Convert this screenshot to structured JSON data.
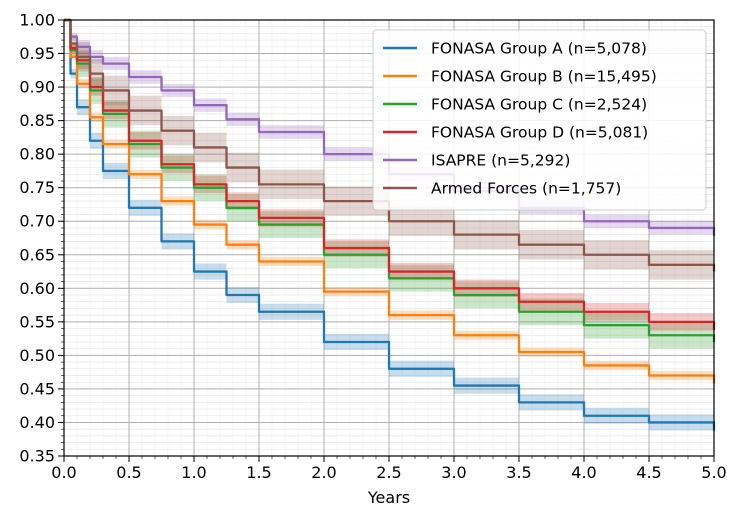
{
  "chart_data": {
    "type": "line",
    "title": "",
    "xlabel": "Years",
    "ylabel": "",
    "xlim": [
      0,
      5
    ],
    "ylim": [
      0.35,
      1.0
    ],
    "x_ticks": [
      0,
      0.5,
      1,
      1.5,
      2,
      2.5,
      3,
      3.5,
      4,
      4.5,
      5
    ],
    "x_tick_labels": [
      "0.0",
      "0.5",
      "1.0",
      "1.5",
      "2.0",
      "2.5",
      "3.0",
      "3.5",
      "4.0",
      "4.5",
      "5.0"
    ],
    "y_ticks": [
      0.35,
      0.4,
      0.45,
      0.5,
      0.55,
      0.6,
      0.65,
      0.7,
      0.75,
      0.8,
      0.85,
      0.9,
      0.95,
      1.0
    ],
    "y_tick_labels": [
      "0.35",
      "0.40",
      "0.45",
      "0.50",
      "0.55",
      "0.60",
      "0.65",
      "0.70",
      "0.75",
      "0.80",
      "0.85",
      "0.90",
      "0.95",
      "1.00"
    ],
    "grid": true,
    "legend_position": "top-right",
    "x": [
      0,
      0.05,
      0.1,
      0.2,
      0.3,
      0.5,
      0.75,
      1.0,
      1.25,
      1.5,
      2.0,
      2.5,
      3.0,
      3.5,
      4.0,
      4.5,
      5.0
    ],
    "series": [
      {
        "name": "FONASA Group A (n=5,078)",
        "color": "#1f77b4",
        "values": [
          1.0,
          0.92,
          0.87,
          0.82,
          0.775,
          0.72,
          0.67,
          0.625,
          0.59,
          0.565,
          0.52,
          0.48,
          0.455,
          0.43,
          0.41,
          0.4,
          0.388
        ],
        "ci": 0.012
      },
      {
        "name": "FONASA Group B (n=15,495)",
        "color": "#ff7f0e",
        "values": [
          1.0,
          0.945,
          0.905,
          0.855,
          0.815,
          0.77,
          0.73,
          0.695,
          0.665,
          0.64,
          0.595,
          0.56,
          0.53,
          0.505,
          0.485,
          0.47,
          0.458
        ],
        "ci": 0.007
      },
      {
        "name": "FONASA Group C (n=2,524)",
        "color": "#2ca02c",
        "values": [
          1.0,
          0.955,
          0.935,
          0.895,
          0.86,
          0.815,
          0.78,
          0.75,
          0.72,
          0.695,
          0.65,
          0.615,
          0.59,
          0.565,
          0.545,
          0.53,
          0.52
        ],
        "ci": 0.02
      },
      {
        "name": "FONASA Group D (n=5,081)",
        "color": "#d62728",
        "values": [
          1.0,
          0.958,
          0.94,
          0.9,
          0.865,
          0.82,
          0.785,
          0.755,
          0.73,
          0.705,
          0.66,
          0.625,
          0.6,
          0.58,
          0.565,
          0.55,
          0.538
        ],
        "ci": 0.013
      },
      {
        "name": "ISAPRE (n=5,292)",
        "color": "#9467bd",
        "values": [
          1.0,
          0.975,
          0.96,
          0.945,
          0.935,
          0.915,
          0.895,
          0.873,
          0.852,
          0.833,
          0.8,
          0.77,
          0.745,
          0.72,
          0.7,
          0.69,
          0.678
        ],
        "ci": 0.01
      },
      {
        "name": "Armed Forces (n=1,757)",
        "color": "#8c564b",
        "values": [
          1.0,
          0.965,
          0.945,
          0.92,
          0.895,
          0.865,
          0.835,
          0.81,
          0.78,
          0.755,
          0.73,
          0.7,
          0.68,
          0.665,
          0.65,
          0.635,
          0.625
        ],
        "ci": 0.022
      }
    ]
  }
}
